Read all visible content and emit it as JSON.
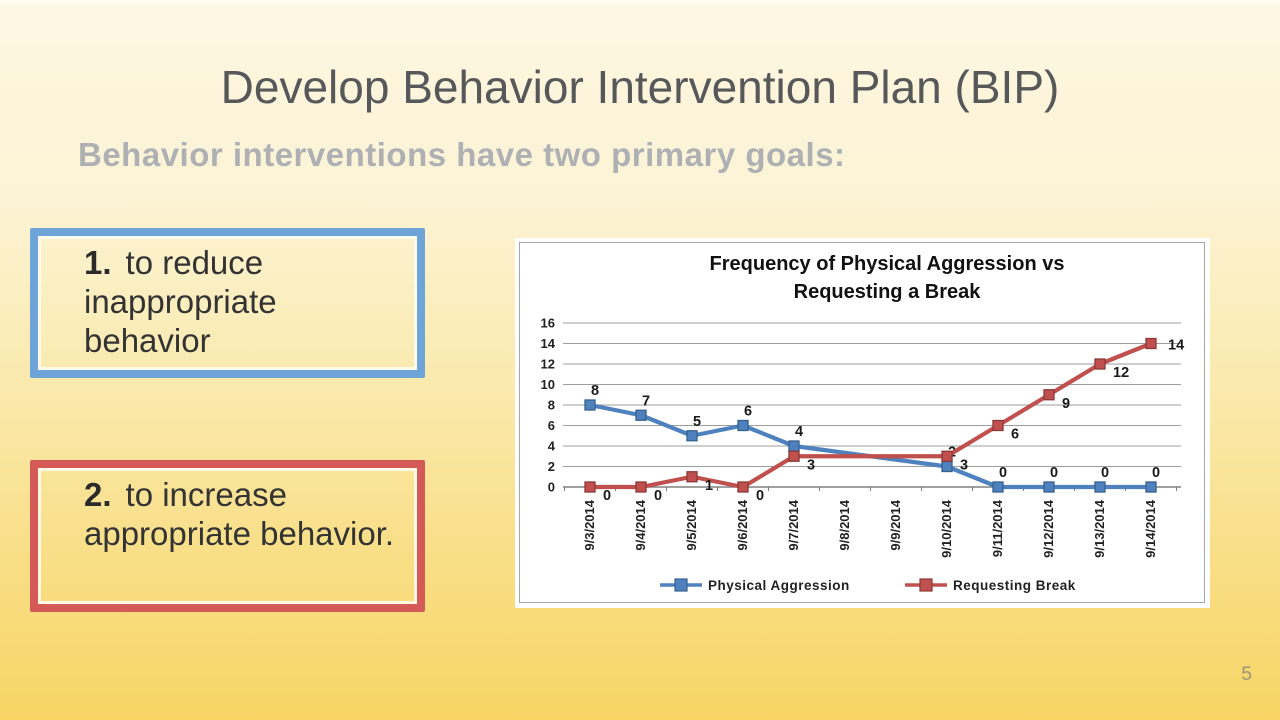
{
  "slide": {
    "title": "Develop Behavior Intervention Plan (BIP)",
    "subtitle": "Behavior interventions have two primary goals:",
    "page_number": "5",
    "goals": [
      {
        "number": "1.",
        "text": "to reduce inappropriate behavior",
        "accent": "#6fa4d9"
      },
      {
        "number": "2.",
        "text": "to increase appropriate behavior.",
        "accent": "#d45a58"
      }
    ]
  },
  "chart_data": {
    "type": "line",
    "title_lines": [
      "Frequency of Physical Aggression vs",
      "Requesting a Break"
    ],
    "categories": [
      "9/3/2014",
      "9/4/2014",
      "9/5/2014",
      "9/6/2014",
      "9/7/2014",
      "9/8/2014",
      "9/9/2014",
      "9/10/2014",
      "9/11/2014",
      "9/12/2014",
      "9/13/2014",
      "9/14/2014"
    ],
    "series": [
      {
        "name": "Physical Aggression",
        "color": "#4e81bd",
        "marker_border": "#35618f",
        "values": [
          8,
          7,
          5,
          6,
          4,
          null,
          null,
          2,
          0,
          0,
          0,
          0
        ]
      },
      {
        "name": "Requesting Break",
        "color": "#c0504d",
        "marker_border": "#8c3836",
        "values": [
          0,
          0,
          1,
          0,
          3,
          null,
          null,
          3,
          6,
          9,
          12,
          14
        ]
      }
    ],
    "ylabel": "",
    "xlabel": "",
    "ylim": [
      0,
      16
    ],
    "ytick_step": 2,
    "grid": true,
    "legend_position": "bottom",
    "grid_color": "#9d9d9d",
    "axis_color": "#808080",
    "text_color": "#222222",
    "label_color": "#1a1a1a"
  }
}
